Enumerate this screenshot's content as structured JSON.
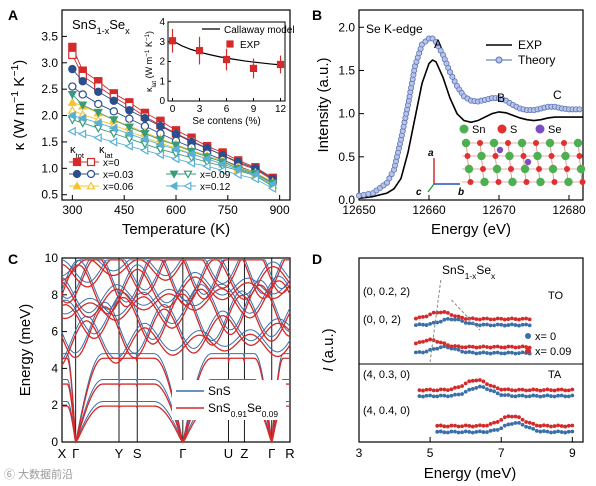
{
  "watermark": "⑥ 大数据前沿",
  "chart_data": [
    {
      "panel": "A",
      "type": "scatter",
      "title": "SnS1-xSex",
      "xlabel": "Temperature (K)",
      "ylabel": "κ (W m-1 K-1)",
      "xlim": [
        270,
        930
      ],
      "ylim": [
        0.4,
        4.0
      ],
      "x_ticks": [
        300,
        450,
        600,
        750,
        900
      ],
      "y_ticks": [
        0.5,
        1.0,
        1.5,
        2.0,
        2.5,
        3.0,
        3.5
      ],
      "grid": false,
      "legend_header": [
        "κtot",
        "κlat"
      ],
      "legend": [
        "x=0",
        "x=0.03",
        "x=0.06",
        "x=0.09",
        "x=0.12"
      ],
      "series_colors": [
        "#d42a2a",
        "#2a4f8c",
        "#f2c431",
        "#3a9a7a",
        "#5ab0d6"
      ],
      "series": [
        {
          "name": "x=0",
          "kind": "tot",
          "marker": "square",
          "x": [
            300,
            330,
            375,
            420,
            465,
            510,
            555,
            600,
            645,
            690,
            735,
            780,
            830,
            880
          ],
          "values": [
            3.3,
            2.85,
            2.65,
            2.42,
            2.25,
            2.05,
            1.9,
            1.72,
            1.58,
            1.42,
            1.3,
            1.15,
            1.02,
            0.82
          ]
        },
        {
          "name": "x=0",
          "kind": "lat",
          "marker": "square-open",
          "x": [
            300,
            330,
            375,
            420,
            465,
            510,
            555,
            600,
            645,
            690,
            735,
            780,
            830,
            880
          ],
          "values": [
            3.15,
            2.75,
            2.55,
            2.35,
            2.18,
            1.98,
            1.82,
            1.66,
            1.52,
            1.38,
            1.25,
            1.1,
            0.98,
            0.78
          ]
        },
        {
          "name": "x=0.03",
          "kind": "tot",
          "marker": "circle",
          "x": [
            300,
            330,
            375,
            420,
            465,
            510,
            555,
            600,
            645,
            690,
            735,
            780,
            830,
            880
          ],
          "values": [
            2.88,
            2.65,
            2.45,
            2.28,
            2.1,
            1.95,
            1.8,
            1.65,
            1.5,
            1.38,
            1.25,
            1.12,
            1.0,
            0.8
          ]
        },
        {
          "name": "x=0.03",
          "kind": "lat",
          "marker": "circle-open",
          "x": [
            300,
            330,
            375,
            420,
            465,
            510,
            555,
            600,
            645,
            690,
            735,
            780,
            830,
            880
          ],
          "values": [
            2.55,
            2.4,
            2.22,
            2.08,
            1.94,
            1.8,
            1.66,
            1.52,
            1.4,
            1.28,
            1.16,
            1.04,
            0.92,
            0.72
          ]
        },
        {
          "name": "x=0.06",
          "kind": "tot",
          "marker": "triangle-up",
          "x": [
            300,
            330,
            375,
            420,
            465,
            510,
            555,
            600,
            645,
            690,
            735,
            780,
            830,
            880
          ],
          "values": [
            2.25,
            2.18,
            2.05,
            1.92,
            1.8,
            1.68,
            1.56,
            1.45,
            1.34,
            1.24,
            1.14,
            1.02,
            0.92,
            0.74
          ]
        },
        {
          "name": "x=0.06",
          "kind": "lat",
          "marker": "triangle-up-open",
          "x": [
            300,
            330,
            375,
            420,
            465,
            510,
            555,
            600,
            645,
            690,
            735,
            780,
            830,
            880
          ],
          "values": [
            2.1,
            2.02,
            1.92,
            1.82,
            1.7,
            1.58,
            1.48,
            1.38,
            1.28,
            1.18,
            1.08,
            0.98,
            0.88,
            0.68
          ]
        },
        {
          "name": "x=0.09",
          "kind": "tot",
          "marker": "triangle-down",
          "x": [
            300,
            330,
            375,
            420,
            465,
            510,
            555,
            600,
            645,
            690,
            735,
            780,
            830,
            880
          ],
          "values": [
            2.4,
            2.2,
            2.06,
            1.92,
            1.78,
            1.66,
            1.54,
            1.44,
            1.32,
            1.22,
            1.12,
            1.0,
            0.9,
            0.72
          ]
        },
        {
          "name": "x=0.09",
          "kind": "lat",
          "marker": "triangle-down-open",
          "x": [
            300,
            330,
            375,
            420,
            465,
            510,
            555,
            600,
            645,
            690,
            735,
            780,
            830,
            880
          ],
          "values": [
            1.92,
            1.86,
            1.76,
            1.66,
            1.56,
            1.46,
            1.36,
            1.28,
            1.2,
            1.12,
            1.04,
            0.96,
            0.86,
            0.66
          ]
        },
        {
          "name": "x=0.12",
          "kind": "tot",
          "marker": "triangle-left",
          "x": [
            300,
            330,
            375,
            420,
            465,
            510,
            555,
            600,
            645,
            690,
            735,
            780,
            830,
            880
          ],
          "values": [
            2.0,
            1.95,
            1.86,
            1.76,
            1.65,
            1.55,
            1.45,
            1.36,
            1.27,
            1.18,
            1.08,
            0.98,
            0.88,
            0.7
          ]
        },
        {
          "name": "x=0.12",
          "kind": "lat",
          "marker": "triangle-left-open",
          "x": [
            300,
            330,
            375,
            420,
            465,
            510,
            555,
            600,
            645,
            690,
            735,
            780,
            830,
            880
          ],
          "values": [
            1.7,
            1.65,
            1.58,
            1.5,
            1.42,
            1.34,
            1.26,
            1.18,
            1.1,
            1.04,
            0.96,
            0.88,
            0.8,
            0.62
          ]
        }
      ],
      "inset": {
        "type": "scatter",
        "xlabel": "Se contens (%)",
        "ylabel": "κlat (W m-1 K-1)",
        "xlim": [
          -0.5,
          12.5
        ],
        "ylim": [
          0,
          4
        ],
        "x_ticks": [
          0,
          3,
          6,
          9,
          12
        ],
        "y_ticks": [
          0,
          1,
          2,
          3,
          4
        ],
        "legend": [
          "Callaway model",
          "EXP"
        ],
        "exp": {
          "x": [
            0,
            3,
            6,
            9,
            12
          ],
          "values": [
            3.05,
            2.55,
            2.1,
            1.65,
            1.85
          ],
          "errors": [
            0.6,
            0.7,
            0.55,
            0.5,
            0.45
          ]
        },
        "model": {
          "x": [
            0,
            1,
            2,
            3,
            4,
            5,
            6,
            7,
            8,
            9,
            10,
            11,
            12
          ],
          "values": [
            3.05,
            2.8,
            2.62,
            2.48,
            2.36,
            2.26,
            2.17,
            2.1,
            2.03,
            1.97,
            1.92,
            1.87,
            1.83
          ]
        }
      }
    },
    {
      "panel": "B",
      "type": "line",
      "title": "Se K-edge",
      "xlabel": "Energy (eV)",
      "ylabel": "Intensity (a.u.)",
      "xlim": [
        12650,
        12682
      ],
      "ylim": [
        0,
        2.2
      ],
      "x_ticks": [
        12650,
        12660,
        12670,
        12680
      ],
      "y_ticks": [
        0.0,
        0.5,
        1.0,
        1.5,
        2.0
      ],
      "grid": false,
      "legend": [
        "EXP",
        "Theory"
      ],
      "annotations": [
        "A",
        "B",
        "C"
      ],
      "structure_labels": [
        "Sn",
        "S",
        "Se"
      ],
      "axis_labels": [
        "a",
        "b",
        "c"
      ],
      "series": [
        {
          "name": "EXP",
          "x": [
            12650,
            12652,
            12654,
            12655,
            12656,
            12657,
            12658,
            12659,
            12660,
            12660.5,
            12661,
            12662,
            12663,
            12664,
            12665,
            12666,
            12667,
            12668,
            12669,
            12670,
            12671,
            12672,
            12673,
            12674,
            12675,
            12676,
            12677,
            12678,
            12679,
            12680,
            12681,
            12682
          ],
          "values": [
            0.02,
            0.04,
            0.08,
            0.13,
            0.25,
            0.55,
            0.95,
            1.35,
            1.58,
            1.62,
            1.6,
            1.42,
            1.18,
            1.0,
            0.92,
            0.9,
            0.92,
            0.96,
            1.0,
            1.02,
            1.01,
            0.98,
            0.95,
            0.93,
            0.92,
            0.93,
            0.95,
            0.96,
            0.96,
            0.96,
            0.96,
            0.96
          ]
        },
        {
          "name": "Theory",
          "x": [
            12650,
            12652,
            12654,
            12655,
            12656,
            12657,
            12658,
            12659,
            12660,
            12660.5,
            12661,
            12662,
            12663,
            12664,
            12665,
            12666,
            12667,
            12668,
            12669,
            12670,
            12671,
            12672,
            12673,
            12674,
            12675,
            12676,
            12677,
            12678,
            12679,
            12680,
            12681,
            12682
          ],
          "values": [
            0.05,
            0.08,
            0.2,
            0.35,
            0.7,
            1.1,
            1.55,
            1.8,
            1.87,
            1.87,
            1.83,
            1.68,
            1.48,
            1.32,
            1.2,
            1.15,
            1.14,
            1.16,
            1.18,
            1.18,
            1.15,
            1.1,
            1.06,
            1.04,
            1.04,
            1.06,
            1.08,
            1.08,
            1.06,
            1.05,
            1.05,
            1.05
          ]
        }
      ]
    },
    {
      "panel": "C",
      "type": "line",
      "title": "",
      "xlabel": "",
      "ylabel": "Energy (meV)",
      "ylim": [
        0,
        10
      ],
      "y_ticks": [
        0,
        2,
        4,
        6,
        8,
        10
      ],
      "k_points": [
        "X",
        "Γ",
        "Y",
        "S",
        "Γ",
        "U",
        "Z",
        "Γ",
        "R"
      ],
      "k_positions": [
        0,
        0.06,
        0.25,
        0.33,
        0.53,
        0.73,
        0.8,
        0.92,
        1.0
      ],
      "legend": [
        "SnS",
        "SnS0.91Se0.09"
      ],
      "series_colors": [
        "#3a6fa8",
        "#d42a2a"
      ],
      "series": [
        {
          "name": "SnS",
          "description_branches": 12
        },
        {
          "name": "SnS0.91Se0.09",
          "description_branches": 12
        }
      ]
    },
    {
      "panel": "D",
      "type": "scatter",
      "title": "SnS1-xSex",
      "xlabel": "Energy (meV)",
      "ylabel": "I (a.u.)",
      "xlim": [
        3,
        9.3
      ],
      "x_ticks": [
        3,
        5,
        7,
        9
      ],
      "legend": [
        "x= 0",
        "x= 0.09"
      ],
      "series_colors": [
        "#3a6fa8",
        "#d42a2a"
      ],
      "groups": [
        {
          "label": "(0, 0.2, 2)",
          "mode": "TO",
          "peak_x0": 5.6,
          "peak_x009": 5.3
        },
        {
          "label": "(0, 0, 2)",
          "mode": "TO",
          "peak_x0": 5.4,
          "peak_x009": 5.0
        },
        {
          "label": "(4, 0.3, 0)",
          "mode": "TA",
          "peak_x0": 6.4,
          "peak_x009": 6.3
        },
        {
          "label": "(4, 0.4, 0)",
          "mode": "TA",
          "peak_x0": 7.4,
          "peak_x009": 7.3
        }
      ],
      "mode_labels": [
        "TO",
        "TA"
      ]
    }
  ]
}
